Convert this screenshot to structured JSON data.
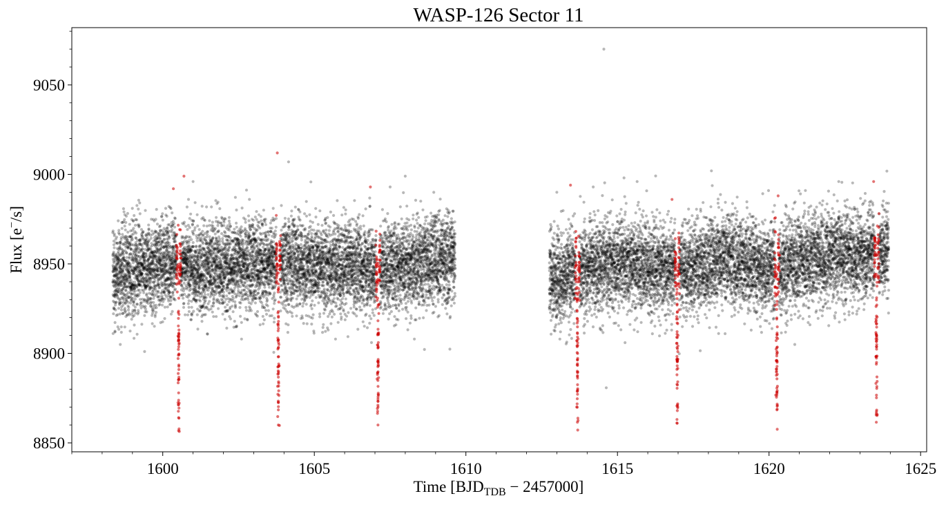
{
  "chart_data": {
    "type": "scatter",
    "title": "WASP-126 Sector 11",
    "xlabel": {
      "prefix": "Time [BJD",
      "subscript": "TDB",
      "suffix": " − 2457000]"
    },
    "ylabel": {
      "prefix": "Flux [e",
      "superscript": "−",
      "suffix": "/s]"
    },
    "xlim": [
      1597.0,
      1625.2
    ],
    "ylim": [
      8845.0,
      9082.0
    ],
    "x_ticks": [
      1600,
      1605,
      1610,
      1615,
      1620,
      1625
    ],
    "x_tick_labels": [
      "1600",
      "1605",
      "1610",
      "1615",
      "1620",
      "1625"
    ],
    "x_minor_step": 1,
    "y_ticks": [
      8850,
      8900,
      8950,
      9000,
      9050
    ],
    "y_tick_labels": [
      "8850",
      "8900",
      "8950",
      "9000",
      "9050"
    ],
    "y_minor_step": 10,
    "grid": false,
    "legend": "none",
    "series": [
      {
        "role": "out-of-transit",
        "color": "#000000",
        "opacity": 0.28,
        "segments": [
          {
            "x_range": [
              1598.35,
              1609.65
            ],
            "baseline_knots": [
              [
                1598.35,
                8944
              ],
              [
                1600.0,
                8950
              ],
              [
                1601.5,
                8948
              ],
              [
                1603.0,
                8951
              ],
              [
                1605.0,
                8949
              ],
              [
                1607.0,
                8947
              ],
              [
                1609.65,
                8953
              ]
            ],
            "scatter_sigma": 12.5
          },
          {
            "x_range": [
              1612.75,
              1623.95
            ],
            "baseline_knots": [
              [
                1612.75,
                8942
              ],
              [
                1614.0,
                8948
              ],
              [
                1615.5,
                8950
              ],
              [
                1617.0,
                8946
              ],
              [
                1618.5,
                8952
              ],
              [
                1620.0,
                8947
              ],
              [
                1621.5,
                8954
              ],
              [
                1623.95,
                8956
              ]
            ],
            "scatter_sigma": 12.5
          }
        ],
        "outliers": [
          [
            1598.6,
            8905
          ],
          [
            1599.4,
            8901
          ],
          [
            1601.0,
            8996
          ],
          [
            1602.6,
            8908
          ],
          [
            1603.4,
            8924
          ],
          [
            1604.15,
            9007
          ],
          [
            1605.7,
            8908
          ],
          [
            1607.5,
            8993
          ],
          [
            1608.0,
            8999
          ],
          [
            1608.3,
            8908
          ],
          [
            1613.0,
            8990
          ],
          [
            1613.1,
            8908
          ],
          [
            1614.2,
            8993
          ],
          [
            1614.55,
            9070
          ],
          [
            1615.25,
            8906
          ],
          [
            1615.65,
            8996
          ],
          [
            1618.1,
            9002
          ],
          [
            1618.55,
            8911
          ],
          [
            1620.85,
            8905
          ],
          [
            1621.2,
            8991
          ],
          [
            1622.3,
            8996
          ]
        ]
      },
      {
        "role": "in-transit",
        "color": "#cc0000",
        "opacity": 0.55,
        "period": 3.2888,
        "duration": 0.135,
        "depth": 60,
        "transit_centers": [
          1600.525,
          1603.813,
          1607.102,
          1613.681,
          1616.97,
          1620.259,
          1623.548
        ],
        "band_sigma": 9,
        "dip_bottom_range": [
          8860,
          8910
        ],
        "outliers": [
          [
            1600.35,
            8992
          ],
          [
            1600.7,
            8999
          ],
          [
            1603.78,
            9012
          ],
          [
            1606.85,
            8993
          ],
          [
            1613.45,
            8994
          ],
          [
            1616.8,
            8986
          ],
          [
            1620.3,
            8988
          ],
          [
            1623.45,
            8996
          ]
        ]
      }
    ]
  }
}
